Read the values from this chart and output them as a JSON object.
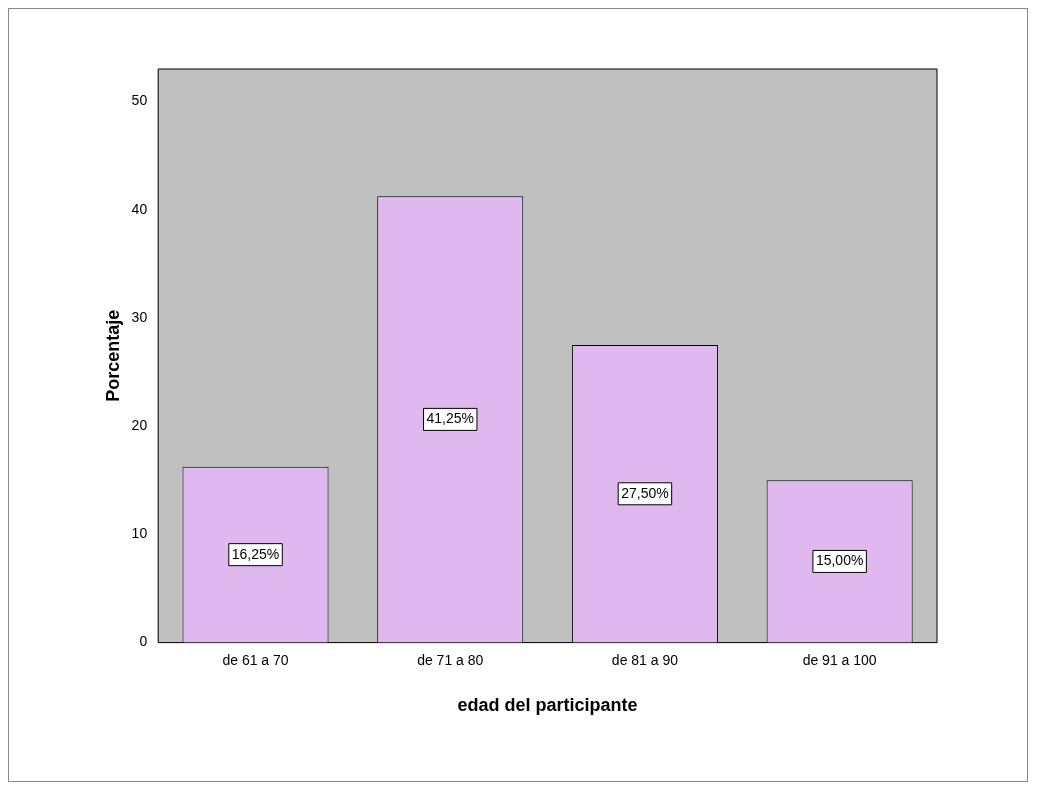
{
  "chart_data": {
    "type": "bar",
    "xlabel": "edad del participante",
    "ylabel": "Porcentaje",
    "categories": [
      "de 61 a 70",
      "de 71 a 80",
      "de 81 a 90",
      "de 91 a 100"
    ],
    "values": [
      16.25,
      41.25,
      27.5,
      15.0
    ],
    "value_labels": [
      "16,25%",
      "41,25%",
      "27,50%",
      "15,00%"
    ],
    "color": "#dfb8f0",
    "ylim": [
      0,
      53
    ],
    "yticks": [
      0,
      10,
      20,
      30,
      40,
      50
    ],
    "grid": false,
    "legend": false
  }
}
